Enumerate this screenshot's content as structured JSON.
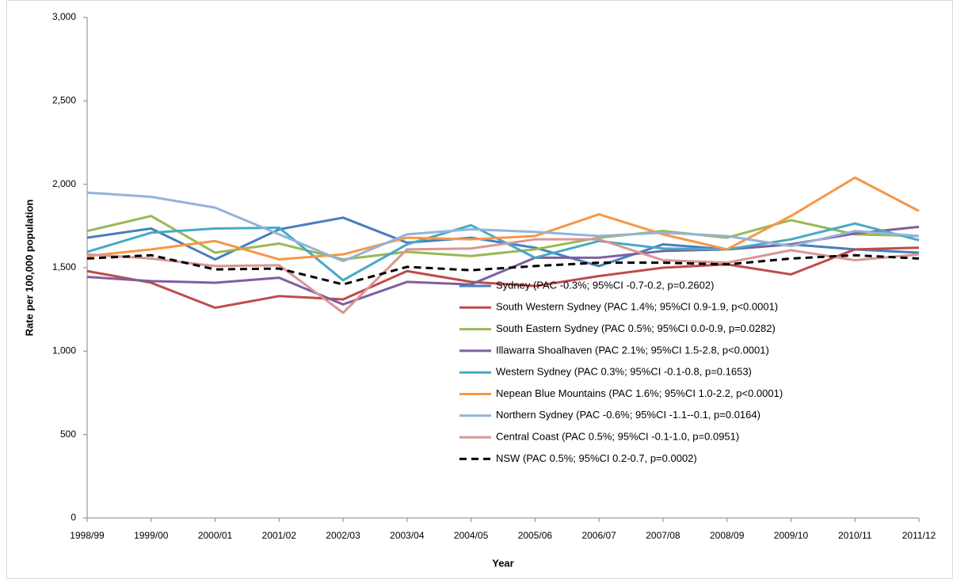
{
  "chart_data": {
    "type": "line",
    "x_label": "Year",
    "y_label": "Rate per 100,000 population",
    "categories": [
      "1998/99",
      "1999/00",
      "2000/01",
      "2001/02",
      "2002/03",
      "2003/04",
      "2004/05",
      "2005/06",
      "2006/07",
      "2007/08",
      "2008/09",
      "2009/10",
      "2010/11",
      "2011/12"
    ],
    "ylim": [
      0,
      3000
    ],
    "yticks": [
      0,
      500,
      {
        "value": 1000,
        "label": "1,000"
      },
      {
        "value": 1500,
        "label": "1,500"
      },
      {
        "value": 2000,
        "label": "2,000"
      },
      {
        "value": 2500,
        "label": "2,500"
      },
      {
        "value": 3000,
        "label": "3,000"
      }
    ],
    "grid": false,
    "series": [
      {
        "name": "Sydney (PAC -0.3%; 95%CI -0.7-0.2, p=0.2602)",
        "color": "#4a7ebb",
        "dashed": false,
        "values": [
          1680,
          1735,
          1550,
          1730,
          1800,
          1650,
          1680,
          1620,
          1510,
          1640,
          1610,
          1640,
          1610,
          1590
        ]
      },
      {
        "name": "South Western Sydney (PAC 1.4%; 95%CI 0.9-1.9, p<0.0001)",
        "color": "#be4b48",
        "dashed": false,
        "values": [
          1480,
          1410,
          1260,
          1330,
          1310,
          1480,
          1415,
          1390,
          1450,
          1500,
          1520,
          1460,
          1610,
          1620
        ]
      },
      {
        "name": "South Eastern Sydney (PAC 0.5%; 95%CI 0.0-0.9, p=0.0282)",
        "color": "#98b954",
        "dashed": false,
        "values": [
          1720,
          1810,
          1590,
          1645,
          1550,
          1595,
          1570,
          1610,
          1680,
          1720,
          1680,
          1785,
          1700,
          1690
        ]
      },
      {
        "name": "Illawarra Shoalhaven (PAC 2.1%; 95%CI 1.5-2.8, p<0.0001)",
        "color": "#7d60a0",
        "dashed": false,
        "values": [
          1445,
          1420,
          1410,
          1440,
          1280,
          1415,
          1400,
          1560,
          1560,
          1600,
          1610,
          1640,
          1705,
          1745
        ]
      },
      {
        "name": "Western Sydney (PAC 0.3%; 95%CI -0.1-0.8, p=0.1653)",
        "color": "#46aac5",
        "dashed": false,
        "values": [
          1595,
          1710,
          1735,
          1740,
          1425,
          1640,
          1755,
          1560,
          1660,
          1615,
          1610,
          1670,
          1765,
          1665
        ]
      },
      {
        "name": "Nepean Blue Mountains (PAC 1.6%; 95%CI 1.0-2.2, p<0.0001)",
        "color": "#f79646",
        "dashed": false,
        "values": [
          1570,
          1610,
          1660,
          1550,
          1580,
          1680,
          1670,
          1690,
          1820,
          1700,
          1610,
          1810,
          2040,
          1840
        ]
      },
      {
        "name": "Northern Sydney (PAC -0.6%; 95%CI -1.1--0.1, p=0.0164)",
        "color": "#95b3d7",
        "dashed": false,
        "values": [
          1950,
          1925,
          1860,
          1700,
          1540,
          1700,
          1730,
          1715,
          1690,
          1710,
          1690,
          1630,
          1720,
          1690
        ]
      },
      {
        "name": "Central Coast (PAC 0.5%; 95%CI -0.1-1.0, p=0.0951)",
        "color": "#d99694",
        "dashed": false,
        "values": [
          1580,
          1555,
          1510,
          1515,
          1230,
          1610,
          1615,
          1670,
          1670,
          1545,
          1530,
          1605,
          1545,
          1580
        ]
      },
      {
        "name": "NSW (PAC 0.5%; 95%CI 0.2-0.7, p=0.0002)",
        "color": "#000000",
        "dashed": true,
        "values": [
          1555,
          1575,
          1490,
          1495,
          1400,
          1505,
          1485,
          1510,
          1530,
          1530,
          1520,
          1555,
          1575,
          1555
        ]
      }
    ]
  }
}
